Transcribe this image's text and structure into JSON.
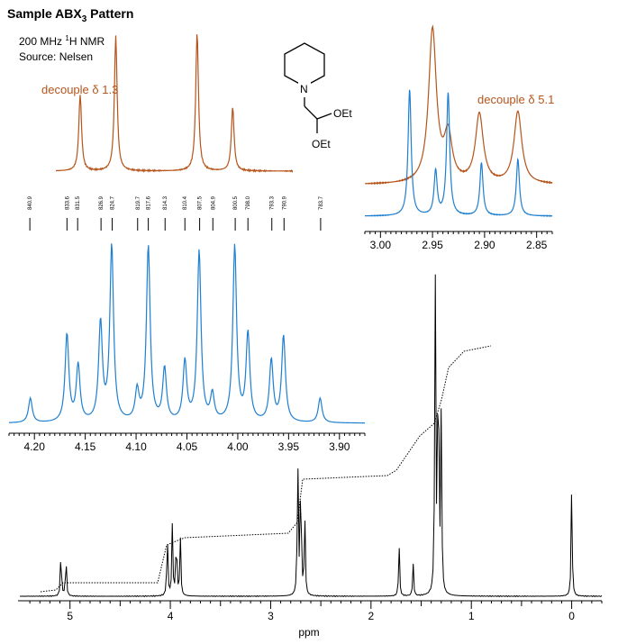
{
  "title": {
    "main": "Sample ABX",
    "sub": "3",
    "tail": " Pattern"
  },
  "notes": {
    "line1_pre": "200 MHz ",
    "line1_sup": "1",
    "line1_post": "H NMR",
    "line2": "Source: Nelsen"
  },
  "labels": {
    "decouple_left": "decouple δ 1.3",
    "decouple_right": "decouple δ 5.1"
  },
  "structure": {
    "n_label": "N",
    "oet1": "OEt",
    "oet2": "OEt"
  },
  "colors": {
    "decoupled": "#b5541b",
    "expanded": "#1f7fd1",
    "full": "#000000"
  },
  "chart_data": [
    {
      "type": "line",
      "name": "full-spectrum",
      "xlabel": "ppm",
      "xlim": [
        5.5,
        -0.3
      ],
      "x_ticks": [
        "5",
        "4",
        "3",
        "2",
        "1",
        "0"
      ],
      "peaks": [
        {
          "ppm": 5.09,
          "height": 0.15
        },
        {
          "ppm": 5.04,
          "height": 0.13
        },
        {
          "ppm": 4.03,
          "height": 0.2
        },
        {
          "ppm": 3.98,
          "height": 0.22
        },
        {
          "ppm": 3.94,
          "height": 0.21
        },
        {
          "ppm": 3.9,
          "height": 0.18
        },
        {
          "ppm": 2.73,
          "height": 0.44
        },
        {
          "ppm": 2.7,
          "height": 0.42
        },
        {
          "ppm": 2.66,
          "height": 0.25
        },
        {
          "ppm": 1.72,
          "height": 0.16
        },
        {
          "ppm": 1.58,
          "height": 0.1
        },
        {
          "ppm": 1.36,
          "height": 1.0
        },
        {
          "ppm": 1.33,
          "height": 0.93
        },
        {
          "ppm": 1.3,
          "height": 0.55
        },
        {
          "ppm": 0.0,
          "height": 0.34
        }
      ]
    },
    {
      "type": "line",
      "name": "expansion-4ppm",
      "xlim": [
        4.225,
        3.875
      ],
      "x_ticks": [
        "4.20",
        "4.15",
        "4.10",
        "4.05",
        "4.00",
        "3.95",
        "3.90"
      ],
      "freq_labels_hz": [
        "840.9",
        "833.6",
        "831.5",
        "826.9",
        "824.7",
        "819.7",
        "817.6",
        "814.3",
        "810.4",
        "807.5",
        "804.9",
        "800.5",
        "798.0",
        "793.3",
        "790.9",
        "783.7"
      ],
      "peaks": [
        {
          "ppm": 4.204,
          "height": 0.14
        },
        {
          "ppm": 4.168,
          "height": 0.5
        },
        {
          "ppm": 4.157,
          "height": 0.32
        },
        {
          "ppm": 4.135,
          "height": 0.56
        },
        {
          "ppm": 4.124,
          "height": 1.0
        },
        {
          "ppm": 4.099,
          "height": 0.17
        },
        {
          "ppm": 4.088,
          "height": 1.0
        },
        {
          "ppm": 4.072,
          "height": 0.3
        },
        {
          "ppm": 4.052,
          "height": 0.34
        },
        {
          "ppm": 4.038,
          "height": 0.97
        },
        {
          "ppm": 4.025,
          "height": 0.15
        },
        {
          "ppm": 4.003,
          "height": 1.0
        },
        {
          "ppm": 3.99,
          "height": 0.5
        },
        {
          "ppm": 3.967,
          "height": 0.35
        },
        {
          "ppm": 3.955,
          "height": 0.49
        },
        {
          "ppm": 3.919,
          "height": 0.14
        }
      ]
    },
    {
      "type": "line",
      "name": "decoupled-4ppm",
      "peaks": [
        {
          "ppm": 4.155,
          "height": 0.55
        },
        {
          "ppm": 4.12,
          "height": 0.97
        },
        {
          "ppm": 4.04,
          "height": 1.0
        },
        {
          "ppm": 4.005,
          "height": 0.46
        }
      ]
    },
    {
      "type": "line",
      "name": "expansion-2.9ppm",
      "xlim": [
        3.015,
        2.835
      ],
      "x_ticks": [
        "3.00",
        "2.95",
        "2.90",
        "2.85"
      ],
      "series": [
        {
          "name": "decouple δ 5.1",
          "peaks": [
            {
              "ppm": 2.95,
              "height": 1.0
            },
            {
              "ppm": 2.935,
              "height": 0.3
            },
            {
              "ppm": 2.905,
              "height": 0.45
            },
            {
              "ppm": 2.868,
              "height": 0.47
            }
          ]
        },
        {
          "name": "normal",
          "peaks": [
            {
              "ppm": 2.972,
              "height": 1.0
            },
            {
              "ppm": 2.947,
              "height": 0.35
            },
            {
              "ppm": 2.935,
              "height": 0.97
            },
            {
              "ppm": 2.903,
              "height": 0.42
            },
            {
              "ppm": 2.868,
              "height": 0.45
            }
          ]
        }
      ]
    }
  ]
}
